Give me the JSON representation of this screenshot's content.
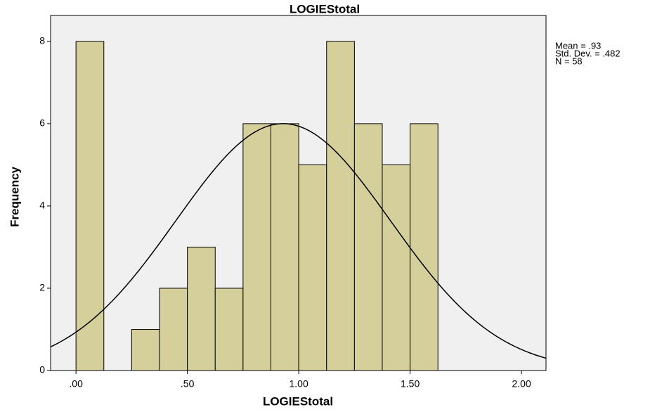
{
  "chart_data": {
    "type": "histogram",
    "title": "LOGIEStotal",
    "x_label": "LOGIEStotal",
    "y_label": "Frequency",
    "bins": [
      0,
      0.125,
      0.25,
      0.375,
      0.5,
      0.625,
      0.75,
      0.875,
      1.0,
      1.125,
      1.25,
      1.375,
      1.5,
      1.625
    ],
    "counts": [
      8,
      0,
      1,
      2,
      3,
      2,
      6,
      6,
      5,
      8,
      6,
      5,
      6
    ],
    "color": "#d4cf9b",
    "xlim": [
      -0.114,
      2.11
    ],
    "xticks": [
      {
        "value": 0,
        "label": ".00"
      },
      {
        "value": 0.5,
        "label": ".50"
      },
      {
        "value": 1.0,
        "label": "1.00"
      },
      {
        "value": 1.5,
        "label": "1.50"
      },
      {
        "value": 2.0,
        "label": "2.00"
      }
    ],
    "ylim": [
      0,
      8.63
    ],
    "yticks": [
      0,
      2,
      4,
      6,
      8
    ],
    "stats": [
      {
        "value": 0.93,
        "label": "Mean = .93"
      },
      {
        "value": 0.482,
        "label": "Std. Dev. = .482"
      },
      {
        "value": 58,
        "label": "N = 58"
      }
    ]
  }
}
